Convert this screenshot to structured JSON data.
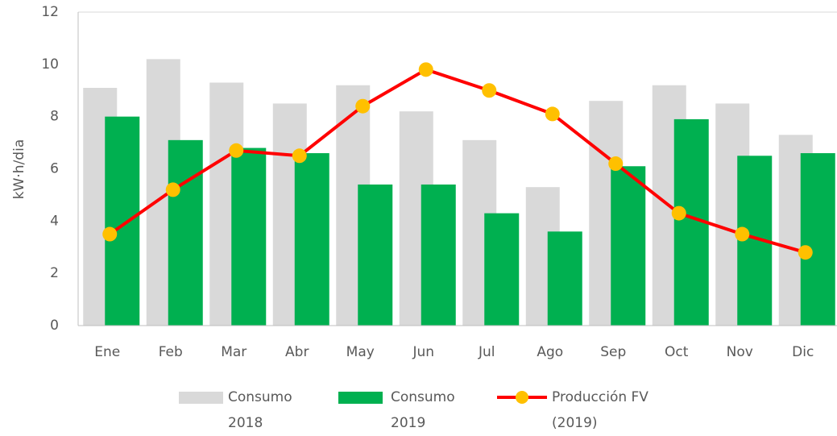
{
  "chart_data": {
    "type": "bar_line",
    "y_label": "kW·h/dia",
    "categories": [
      "Ene",
      "Feb",
      "Mar",
      "Abr",
      "May",
      "Jun",
      "Jul",
      "Ago",
      "Sep",
      "Oct",
      "Nov",
      "Dic"
    ],
    "series": [
      {
        "name": "Consumo 2018",
        "type": "bar",
        "color": "#d9d9d9",
        "values": [
          9.1,
          10.2,
          9.3,
          8.5,
          9.2,
          8.2,
          7.1,
          5.3,
          8.6,
          9.2,
          8.5,
          7.3
        ]
      },
      {
        "name": "Consumo 2019",
        "type": "bar",
        "color": "#00b050",
        "values": [
          8.0,
          7.1,
          6.8,
          6.6,
          5.4,
          5.4,
          4.3,
          3.6,
          6.1,
          7.9,
          6.5,
          6.6
        ]
      },
      {
        "name": "Producción FV (2019)",
        "type": "line",
        "color": "#ff0000",
        "marker_color": "#ffc000",
        "values": [
          3.5,
          5.2,
          6.7,
          6.5,
          8.4,
          9.8,
          9.0,
          8.1,
          6.2,
          4.3,
          3.5,
          2.8
        ]
      }
    ],
    "ylim": [
      0,
      12
    ],
    "yticks": [
      0,
      2,
      4,
      6,
      8,
      10,
      12
    ],
    "grid": false
  }
}
